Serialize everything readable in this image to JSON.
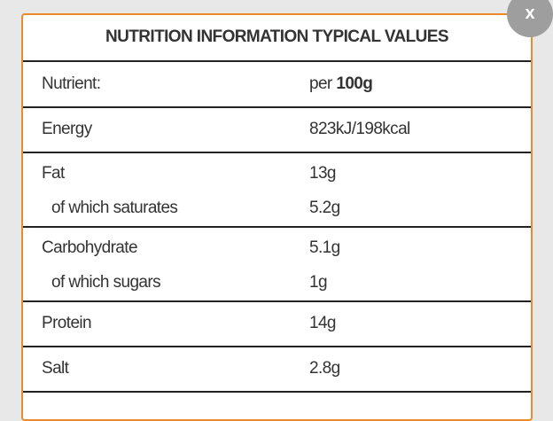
{
  "header": {
    "title": "NUTRITION INFORMATION TYPICAL VALUES"
  },
  "close": "x",
  "table": {
    "head": {
      "nutrient": "Nutrient:",
      "per": "per",
      "amount": "100g"
    },
    "groups": [
      [
        [
          "Energy",
          "823kJ/198kcal"
        ]
      ],
      [
        [
          "Fat",
          "13g"
        ],
        [
          "of which saturates",
          "5.2g"
        ]
      ],
      [
        [
          "Carbohydrate",
          "5.1g"
        ],
        [
          "of which sugars",
          "1g"
        ]
      ],
      [
        [
          "Protein",
          "14g"
        ]
      ],
      [
        [
          "Salt",
          "2.8g"
        ]
      ]
    ]
  }
}
